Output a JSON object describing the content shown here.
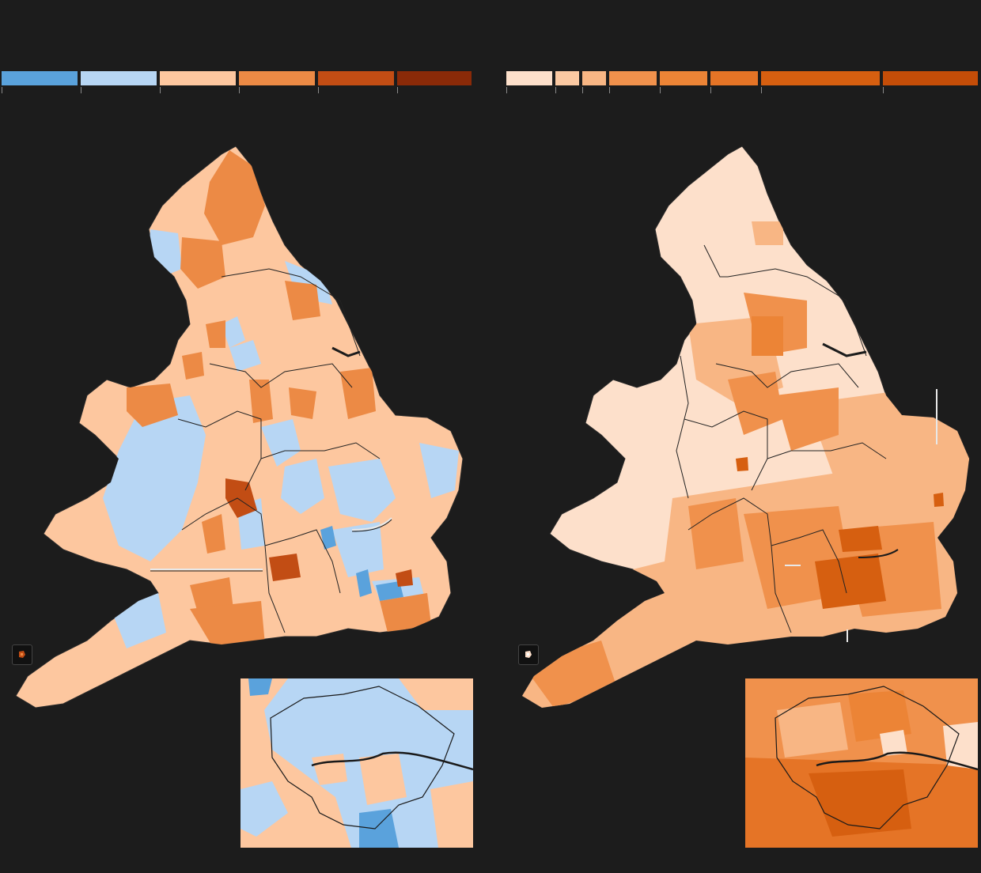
{
  "left_map": {
    "legend_colors": [
      "#5aa2dc",
      "#b7d6f4",
      "#fdc79f",
      "#ec8a45",
      "#c24d14",
      "#8a2a08"
    ],
    "fill_colors": {
      "land_base": "#fdc79f",
      "light_blue": "#b7d6f4",
      "dark_blue": "#5aa2dc",
      "mid_orange": "#ec8a45",
      "dark_orange": "#c24d14"
    },
    "zoom_icon": "map-zoom-icon"
  },
  "right_map": {
    "legend_colors": [
      "#fde0cb",
      "#fbc9a2",
      "#f8b684",
      "#f0914c",
      "#ec8436",
      "#e57426",
      "#d65f10",
      "#c44d08"
    ],
    "fill_colors": {
      "land_base": "#fde0cb",
      "light_orange": "#f8b684",
      "mid_orange": "#f0914c",
      "dark_orange": "#d65f10"
    },
    "zoom_icon": "map-zoom-icon"
  },
  "colors": {
    "background": "#1c1c1c",
    "border_line": "#1a1a1a",
    "annotation_line": "#e8e8e8"
  }
}
